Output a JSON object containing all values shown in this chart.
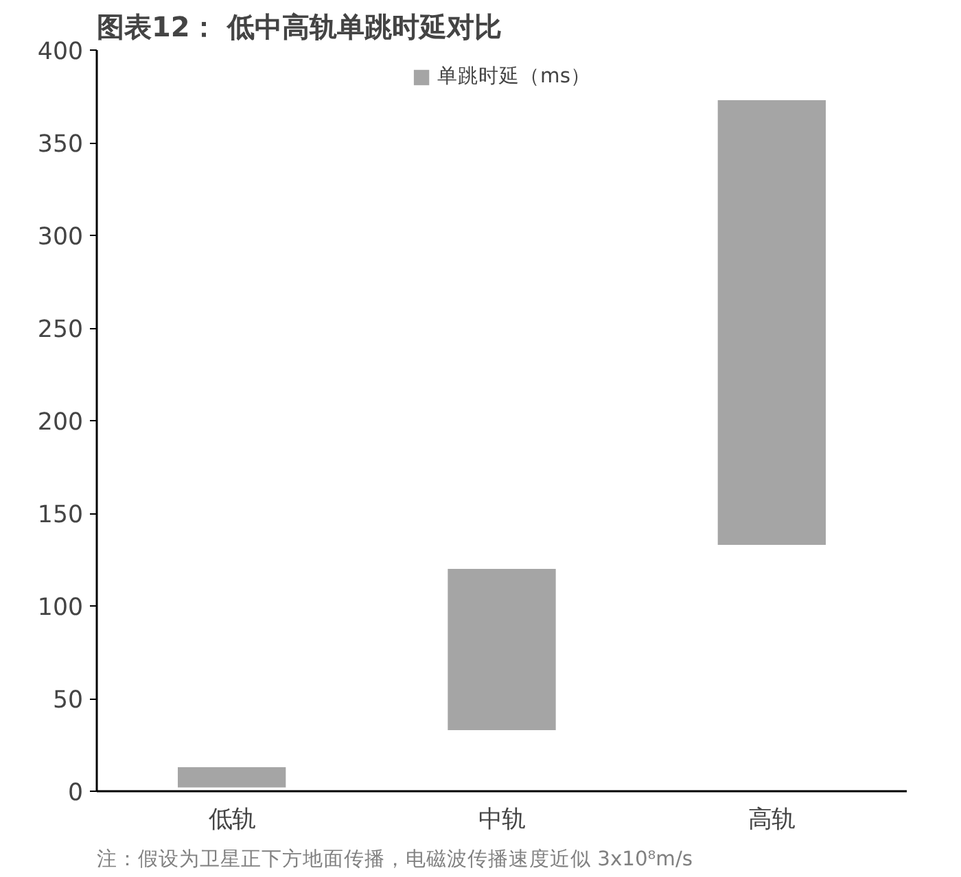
{
  "chart_data": {
    "type": "bar",
    "title": "图表12：  低中高轨单跳时延对比",
    "categories": [
      "低轨",
      "中轨",
      "高轨"
    ],
    "series": [
      {
        "name": "单跳时延（ms）",
        "color": "#a5a5a5",
        "values": [
          11,
          87,
          240
        ],
        "base": [
          2,
          33,
          133
        ]
      }
    ],
    "ylim": [
      0,
      400
    ],
    "yticks": [
      0,
      50,
      100,
      150,
      200,
      250,
      300,
      350,
      400
    ],
    "grid": false,
    "legend": "top",
    "annotations": [
      "注：假设为卫星正下方地面传播，电磁波传播速度近似 3x10⁸m/s"
    ]
  }
}
